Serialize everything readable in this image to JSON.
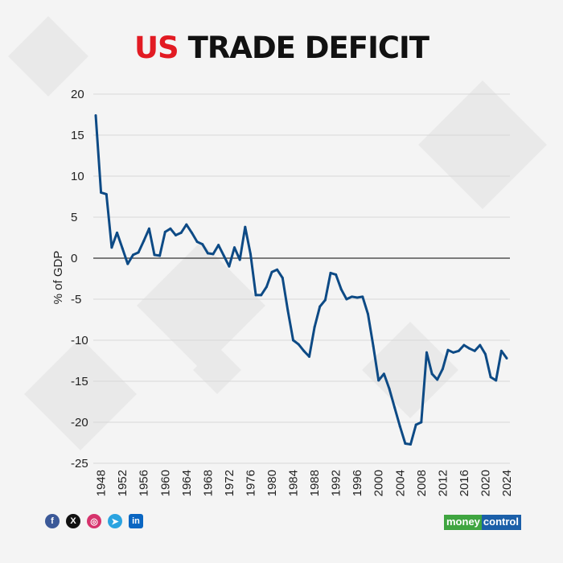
{
  "title": {
    "highlight": "US",
    "rest": "TRADE DEFICIT",
    "highlight_color": "#e21b23"
  },
  "chart_data": {
    "type": "line",
    "title": "US TRADE DEFICIT",
    "xlabel": "",
    "ylabel": "% of GDP",
    "ylim": [
      -25,
      20
    ],
    "yticks": [
      20,
      15,
      10,
      5,
      0,
      -5,
      -10,
      -15,
      -20,
      -25
    ],
    "xticks": [
      1948,
      1952,
      1956,
      1960,
      1964,
      1968,
      1972,
      1976,
      1980,
      1984,
      1988,
      1992,
      1996,
      2000,
      2004,
      2008,
      2012,
      2016,
      2020,
      2024
    ],
    "grid": true,
    "line_color": "#0d4a85",
    "x": [
      1947,
      1948,
      1949,
      1950,
      1951,
      1952,
      1953,
      1954,
      1955,
      1956,
      1957,
      1958,
      1959,
      1960,
      1961,
      1962,
      1963,
      1964,
      1965,
      1966,
      1967,
      1968,
      1969,
      1970,
      1971,
      1972,
      1973,
      1974,
      1975,
      1976,
      1977,
      1978,
      1979,
      1980,
      1981,
      1982,
      1983,
      1984,
      1985,
      1986,
      1987,
      1988,
      1989,
      1990,
      1991,
      1992,
      1993,
      1994,
      1995,
      1996,
      1997,
      1998,
      1999,
      2000,
      2001,
      2002,
      2003,
      2004,
      2005,
      2006,
      2007,
      2008,
      2009,
      2010,
      2011,
      2012,
      2013,
      2014,
      2015,
      2016,
      2017,
      2018,
      2019,
      2020,
      2021,
      2022,
      2023,
      2024
    ],
    "values": [
      17.4,
      8.0,
      7.8,
      1.3,
      3.1,
      1.2,
      -0.7,
      0.4,
      0.7,
      2.1,
      3.6,
      0.4,
      0.3,
      3.2,
      3.6,
      2.8,
      3.1,
      4.1,
      3.1,
      2.0,
      1.7,
      0.6,
      0.5,
      1.6,
      0.3,
      -1.0,
      1.3,
      -0.2,
      3.8,
      0.5,
      -4.5,
      -4.5,
      -3.5,
      -1.7,
      -1.4,
      -2.4,
      -6.4,
      -10.0,
      -10.5,
      -11.3,
      -12.0,
      -8.4,
      -5.9,
      -5.1,
      -1.8,
      -2.0,
      -3.8,
      -5.0,
      -4.7,
      -4.8,
      -4.7,
      -6.8,
      -10.7,
      -14.9,
      -14.1,
      -15.9,
      -18.2,
      -20.5,
      -22.6,
      -22.7,
      -20.3,
      -20.0,
      -11.5,
      -14.1,
      -14.8,
      -13.5,
      -11.2,
      -11.5,
      -11.3,
      -10.6,
      -11.0,
      -11.3,
      -10.6,
      -11.7,
      -14.5,
      -14.9,
      -11.3,
      -12.2
    ]
  },
  "footer": {
    "social_icons": [
      "facebook-icon",
      "x-icon",
      "instagram-icon",
      "telegram-icon",
      "linkedin-icon"
    ],
    "social_glyphs": [
      "f",
      "X",
      "◎",
      "➤",
      "in"
    ],
    "logo": {
      "part1": "money",
      "part2": "control"
    }
  }
}
